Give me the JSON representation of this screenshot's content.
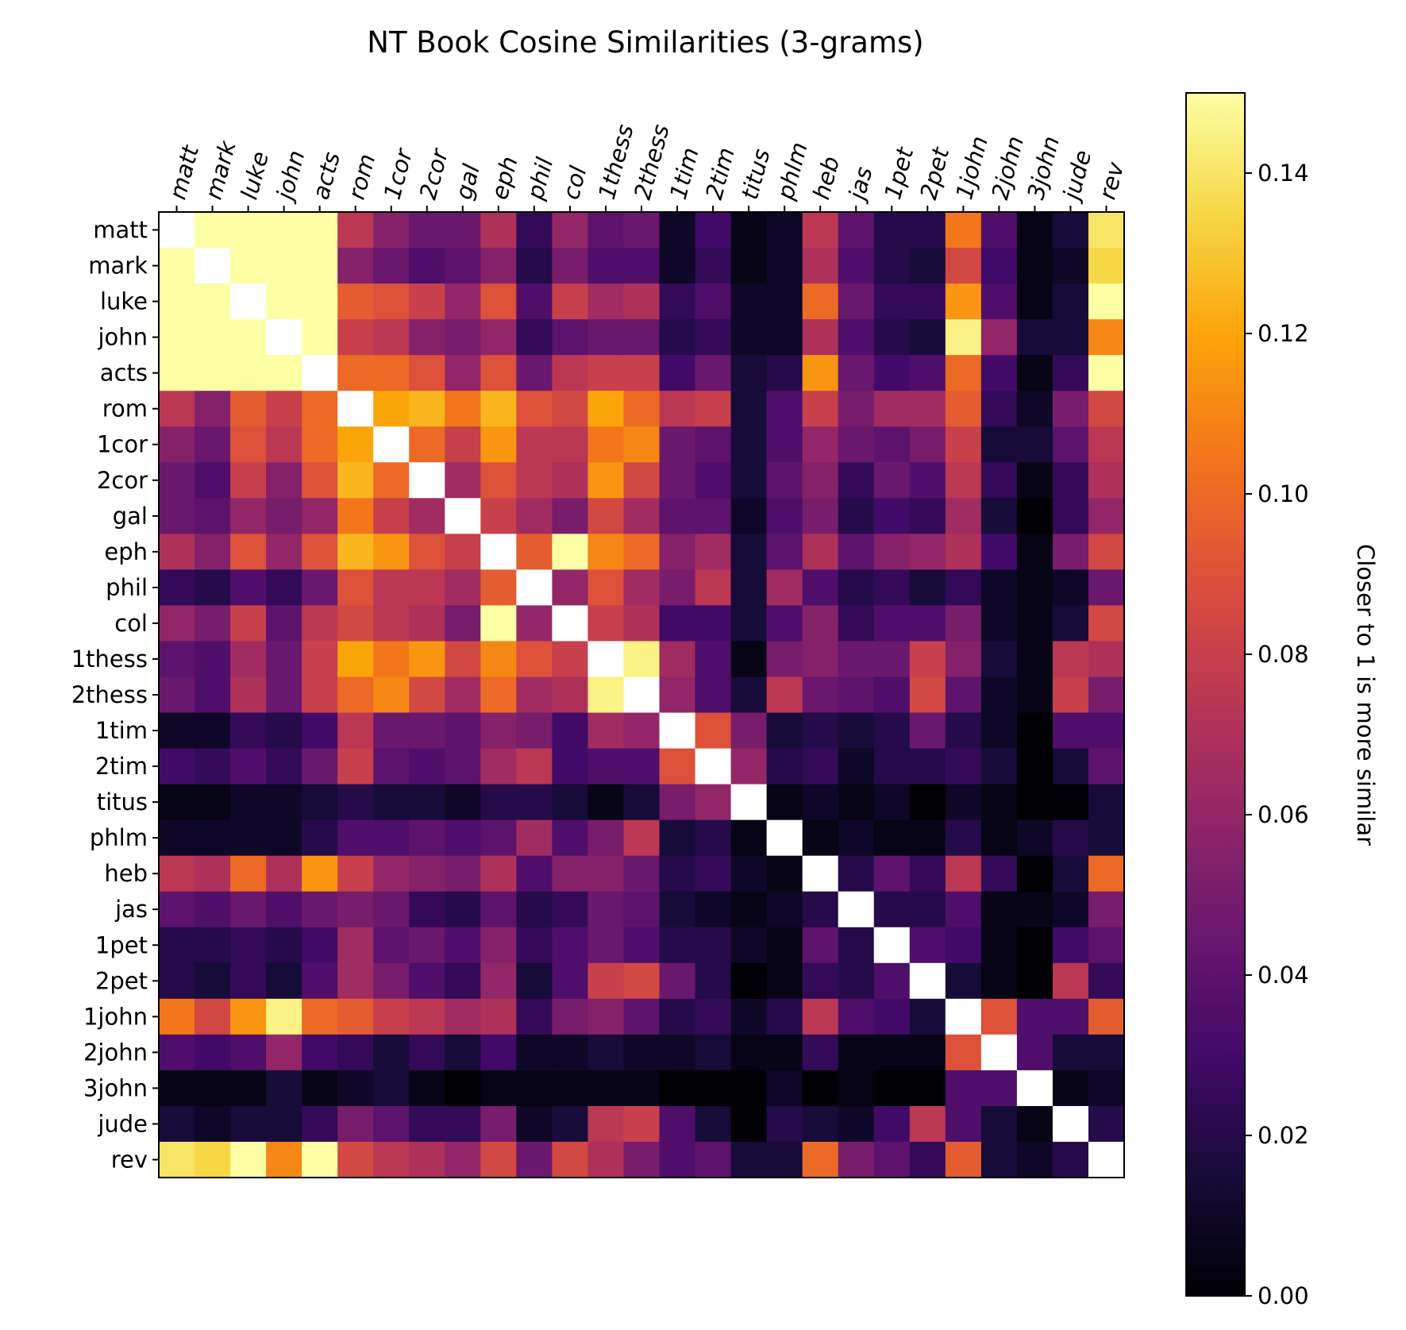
{
  "chart_data": {
    "type": "heatmap",
    "title": "NT Book Cosine Similarities (3-grams)",
    "labels": [
      "matt",
      "mark",
      "luke",
      "john",
      "acts",
      "rom",
      "1cor",
      "2cor",
      "gal",
      "eph",
      "phil",
      "col",
      "1thess",
      "2thess",
      "1tim",
      "2tim",
      "titus",
      "phlm",
      "heb",
      "jas",
      "1pet",
      "2pet",
      "1john",
      "2john",
      "3john",
      "jude",
      "rev"
    ],
    "colorbar": {
      "label": "Closer to 1 is more similar",
      "range": [
        0,
        0.15
      ],
      "ticks": [
        "0.00",
        "0.02",
        "0.04",
        "0.06",
        "0.08",
        "0.10",
        "0.12",
        "0.14"
      ],
      "colormap": "inferno"
    },
    "diagonal_value": 1.0,
    "values": [
      [
        1.0,
        0.15,
        0.15,
        0.15,
        0.15,
        0.075,
        0.055,
        0.045,
        0.045,
        0.07,
        0.025,
        0.06,
        0.04,
        0.045,
        0.01,
        0.03,
        0.005,
        0.01,
        0.075,
        0.04,
        0.02,
        0.02,
        0.105,
        0.035,
        0.005,
        0.015,
        0.14
      ],
      [
        0.15,
        1.0,
        0.15,
        0.15,
        0.15,
        0.055,
        0.045,
        0.035,
        0.04,
        0.055,
        0.02,
        0.05,
        0.035,
        0.035,
        0.01,
        0.025,
        0.005,
        0.01,
        0.07,
        0.035,
        0.02,
        0.015,
        0.085,
        0.03,
        0.005,
        0.01,
        0.135
      ],
      [
        0.15,
        0.15,
        1.0,
        0.15,
        0.15,
        0.095,
        0.09,
        0.08,
        0.06,
        0.09,
        0.035,
        0.08,
        0.065,
        0.07,
        0.025,
        0.035,
        0.01,
        0.01,
        0.1,
        0.045,
        0.025,
        0.025,
        0.115,
        0.035,
        0.005,
        0.015,
        0.15
      ],
      [
        0.15,
        0.15,
        0.15,
        1.0,
        0.15,
        0.08,
        0.075,
        0.055,
        0.05,
        0.06,
        0.025,
        0.04,
        0.045,
        0.045,
        0.02,
        0.025,
        0.01,
        0.01,
        0.07,
        0.035,
        0.02,
        0.015,
        0.145,
        0.06,
        0.015,
        0.015,
        0.11
      ],
      [
        0.15,
        0.15,
        0.15,
        0.15,
        1.0,
        0.1,
        0.1,
        0.09,
        0.06,
        0.09,
        0.045,
        0.075,
        0.08,
        0.08,
        0.03,
        0.045,
        0.015,
        0.02,
        0.115,
        0.045,
        0.03,
        0.035,
        0.1,
        0.03,
        0.005,
        0.025,
        0.15
      ],
      [
        0.075,
        0.055,
        0.095,
        0.08,
        0.1,
        1.0,
        0.12,
        0.125,
        0.105,
        0.125,
        0.09,
        0.085,
        0.12,
        0.1,
        0.075,
        0.08,
        0.015,
        0.035,
        0.08,
        0.05,
        0.065,
        0.065,
        0.095,
        0.025,
        0.01,
        0.05,
        0.085
      ],
      [
        0.055,
        0.045,
        0.09,
        0.075,
        0.1,
        0.12,
        1.0,
        0.1,
        0.08,
        0.115,
        0.075,
        0.075,
        0.105,
        0.11,
        0.045,
        0.04,
        0.015,
        0.035,
        0.06,
        0.045,
        0.04,
        0.05,
        0.08,
        0.015,
        0.015,
        0.04,
        0.075
      ],
      [
        0.045,
        0.035,
        0.08,
        0.055,
        0.09,
        0.125,
        0.1,
        1.0,
        0.065,
        0.09,
        0.075,
        0.07,
        0.115,
        0.085,
        0.045,
        0.035,
        0.015,
        0.04,
        0.055,
        0.025,
        0.045,
        0.035,
        0.075,
        0.025,
        0.005,
        0.025,
        0.07
      ],
      [
        0.045,
        0.04,
        0.06,
        0.05,
        0.06,
        0.105,
        0.08,
        0.065,
        1.0,
        0.08,
        0.065,
        0.05,
        0.085,
        0.065,
        0.04,
        0.04,
        0.01,
        0.035,
        0.05,
        0.02,
        0.03,
        0.025,
        0.065,
        0.015,
        0.0,
        0.025,
        0.06
      ],
      [
        0.07,
        0.055,
        0.09,
        0.06,
        0.09,
        0.125,
        0.115,
        0.09,
        0.08,
        1.0,
        0.095,
        0.15,
        0.11,
        0.1,
        0.055,
        0.065,
        0.015,
        0.04,
        0.07,
        0.04,
        0.055,
        0.06,
        0.07,
        0.03,
        0.005,
        0.05,
        0.085
      ],
      [
        0.025,
        0.02,
        0.035,
        0.025,
        0.045,
        0.09,
        0.075,
        0.075,
        0.065,
        0.095,
        1.0,
        0.06,
        0.09,
        0.065,
        0.05,
        0.075,
        0.015,
        0.065,
        0.035,
        0.02,
        0.025,
        0.015,
        0.025,
        0.01,
        0.005,
        0.01,
        0.045
      ],
      [
        0.06,
        0.05,
        0.08,
        0.04,
        0.075,
        0.085,
        0.075,
        0.07,
        0.05,
        0.15,
        0.06,
        1.0,
        0.08,
        0.07,
        0.03,
        0.03,
        0.015,
        0.035,
        0.055,
        0.025,
        0.035,
        0.035,
        0.05,
        0.01,
        0.005,
        0.015,
        0.085
      ],
      [
        0.04,
        0.035,
        0.065,
        0.045,
        0.08,
        0.12,
        0.105,
        0.115,
        0.085,
        0.11,
        0.09,
        0.08,
        1.0,
        0.145,
        0.065,
        0.035,
        0.005,
        0.05,
        0.055,
        0.045,
        0.045,
        0.08,
        0.055,
        0.015,
        0.005,
        0.075,
        0.07
      ],
      [
        0.045,
        0.035,
        0.07,
        0.045,
        0.08,
        0.1,
        0.11,
        0.085,
        0.065,
        0.1,
        0.065,
        0.07,
        0.145,
        1.0,
        0.06,
        0.035,
        0.015,
        0.075,
        0.045,
        0.04,
        0.035,
        0.085,
        0.04,
        0.01,
        0.005,
        0.08,
        0.05
      ],
      [
        0.01,
        0.01,
        0.025,
        0.02,
        0.03,
        0.075,
        0.045,
        0.045,
        0.04,
        0.055,
        0.05,
        0.03,
        0.065,
        0.06,
        1.0,
        0.09,
        0.05,
        0.015,
        0.02,
        0.015,
        0.02,
        0.045,
        0.02,
        0.01,
        0.0,
        0.035,
        0.035
      ],
      [
        0.03,
        0.025,
        0.035,
        0.025,
        0.045,
        0.08,
        0.04,
        0.035,
        0.04,
        0.065,
        0.075,
        0.03,
        0.035,
        0.035,
        0.09,
        1.0,
        0.06,
        0.02,
        0.025,
        0.01,
        0.02,
        0.02,
        0.025,
        0.015,
        0.0,
        0.015,
        0.04
      ],
      [
        0.005,
        0.005,
        0.01,
        0.01,
        0.015,
        0.02,
        0.015,
        0.015,
        0.01,
        0.02,
        0.02,
        0.015,
        0.005,
        0.015,
        0.05,
        0.06,
        1.0,
        0.005,
        0.01,
        0.005,
        0.01,
        0.0,
        0.01,
        0.005,
        0.0,
        0.0,
        0.015
      ],
      [
        0.01,
        0.01,
        0.01,
        0.01,
        0.02,
        0.035,
        0.035,
        0.04,
        0.035,
        0.04,
        0.065,
        0.035,
        0.05,
        0.075,
        0.015,
        0.02,
        0.005,
        1.0,
        0.005,
        0.01,
        0.005,
        0.005,
        0.02,
        0.005,
        0.01,
        0.02,
        0.015
      ],
      [
        0.075,
        0.07,
        0.1,
        0.07,
        0.115,
        0.08,
        0.06,
        0.055,
        0.05,
        0.07,
        0.035,
        0.055,
        0.055,
        0.045,
        0.02,
        0.025,
        0.01,
        0.005,
        1.0,
        0.02,
        0.04,
        0.025,
        0.075,
        0.025,
        0.0,
        0.015,
        0.1
      ],
      [
        0.04,
        0.035,
        0.045,
        0.035,
        0.045,
        0.05,
        0.045,
        0.025,
        0.02,
        0.04,
        0.02,
        0.025,
        0.045,
        0.04,
        0.015,
        0.01,
        0.005,
        0.01,
        0.02,
        1.0,
        0.02,
        0.02,
        0.035,
        0.005,
        0.005,
        0.01,
        0.05
      ],
      [
        0.02,
        0.02,
        0.025,
        0.02,
        0.03,
        0.065,
        0.04,
        0.045,
        0.035,
        0.055,
        0.025,
        0.035,
        0.045,
        0.035,
        0.02,
        0.02,
        0.01,
        0.005,
        0.04,
        0.02,
        1.0,
        0.035,
        0.03,
        0.005,
        0.0,
        0.03,
        0.04
      ],
      [
        0.02,
        0.015,
        0.025,
        0.015,
        0.035,
        0.065,
        0.05,
        0.035,
        0.025,
        0.06,
        0.015,
        0.035,
        0.08,
        0.085,
        0.045,
        0.02,
        0.0,
        0.005,
        0.025,
        0.02,
        0.035,
        1.0,
        0.015,
        0.005,
        0.0,
        0.075,
        0.025
      ],
      [
        0.105,
        0.085,
        0.115,
        0.145,
        0.1,
        0.095,
        0.08,
        0.075,
        0.065,
        0.07,
        0.025,
        0.05,
        0.055,
        0.04,
        0.02,
        0.025,
        0.01,
        0.02,
        0.075,
        0.035,
        0.03,
        0.015,
        1.0,
        0.09,
        0.035,
        0.035,
        0.095
      ],
      [
        0.035,
        0.03,
        0.035,
        0.06,
        0.03,
        0.025,
        0.015,
        0.025,
        0.015,
        0.03,
        0.01,
        0.01,
        0.015,
        0.01,
        0.01,
        0.015,
        0.005,
        0.005,
        0.025,
        0.005,
        0.005,
        0.005,
        0.09,
        1.0,
        0.035,
        0.015,
        0.015
      ],
      [
        0.005,
        0.005,
        0.005,
        0.015,
        0.005,
        0.01,
        0.015,
        0.005,
        0.0,
        0.005,
        0.005,
        0.005,
        0.005,
        0.005,
        0.0,
        0.0,
        0.0,
        0.01,
        0.0,
        0.005,
        0.0,
        0.0,
        0.035,
        0.035,
        1.0,
        0.005,
        0.01
      ],
      [
        0.015,
        0.01,
        0.015,
        0.015,
        0.025,
        0.05,
        0.04,
        0.025,
        0.025,
        0.05,
        0.01,
        0.015,
        0.075,
        0.08,
        0.035,
        0.015,
        0.0,
        0.02,
        0.015,
        0.01,
        0.03,
        0.075,
        0.035,
        0.015,
        0.005,
        1.0,
        0.02
      ],
      [
        0.14,
        0.135,
        0.15,
        0.11,
        0.15,
        0.085,
        0.075,
        0.07,
        0.06,
        0.085,
        0.045,
        0.085,
        0.07,
        0.05,
        0.035,
        0.04,
        0.015,
        0.015,
        0.1,
        0.05,
        0.04,
        0.025,
        0.095,
        0.015,
        0.01,
        0.02,
        1.0
      ]
    ]
  }
}
